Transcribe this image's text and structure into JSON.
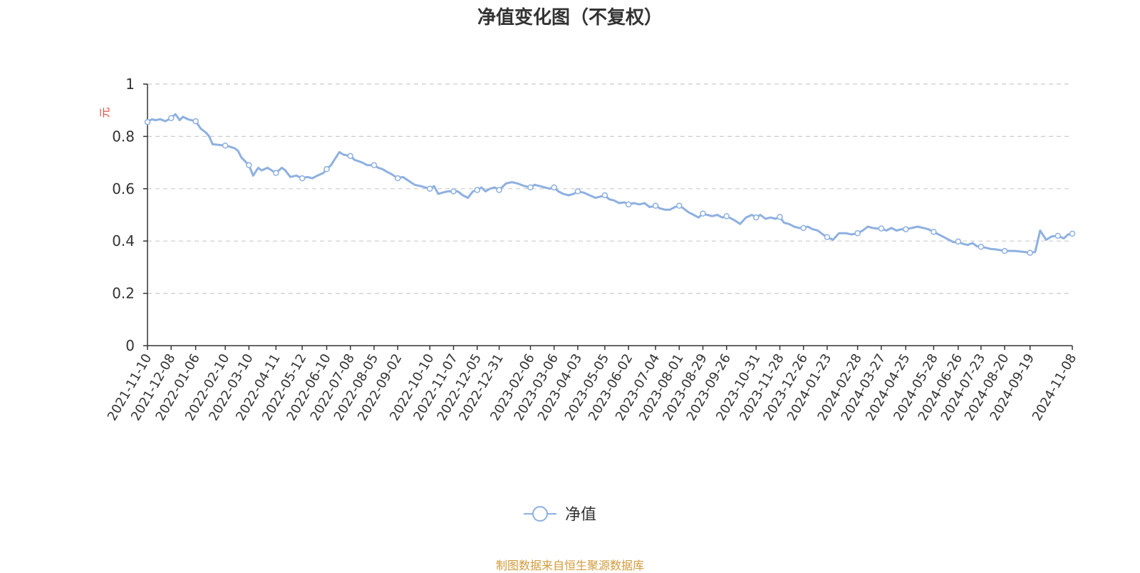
{
  "title": "净值变化图（不复权）",
  "source_note": "制图数据来自恒生聚源数据库",
  "chart_data": {
    "type": "line",
    "title": "净值变化图（不复权）",
    "ylabel": "元",
    "xlabel": "",
    "ylim": [
      0,
      1
    ],
    "yticks": [
      0,
      0.2,
      0.4,
      0.6,
      0.8,
      1
    ],
    "ytick_labels": [
      "0",
      "0.2",
      "0.4",
      "0.6",
      "0.8",
      "1"
    ],
    "grid": "horizontal dashed",
    "legend_position": "bottom-center",
    "x_tick_labels": [
      "2021-11-10",
      "2021-12-08",
      "2022-01-06",
      "2022-02-10",
      "2022-03-10",
      "2022-04-11",
      "2022-05-12",
      "2022-06-10",
      "2022-07-08",
      "2022-08-05",
      "2022-09-02",
      "2022-10-10",
      "2022-11-07",
      "2022-12-05",
      "2022-12-31",
      "2023-02-06",
      "2023-03-06",
      "2023-04-03",
      "2023-05-05",
      "2023-06-02",
      "2023-07-04",
      "2023-08-01",
      "2023-08-29",
      "2023-09-26",
      "2023-10-31",
      "2023-11-28",
      "2023-12-26",
      "2024-01-23",
      "2024-02-28",
      "2024-03-27",
      "2024-04-25",
      "2024-05-28",
      "2024-06-26",
      "2024-07-23",
      "2024-08-20",
      "2024-09-19",
      "2024-11-08"
    ],
    "series": [
      {
        "name": "净值",
        "color": "#8eb0e0",
        "marker": "hollow-circle",
        "x": [
          "2021-11-10",
          "2021-11-15",
          "2021-11-20",
          "2021-11-25",
          "2021-12-01",
          "2021-12-08",
          "2021-12-13",
          "2021-12-18",
          "2021-12-22",
          "2021-12-28",
          "2022-01-06",
          "2022-01-12",
          "2022-01-18",
          "2022-01-22",
          "2022-01-26",
          "2022-02-10",
          "2022-02-16",
          "2022-02-21",
          "2022-02-25",
          "2022-03-01",
          "2022-03-10",
          "2022-03-15",
          "2022-03-21",
          "2022-03-25",
          "2022-04-01",
          "2022-04-11",
          "2022-04-18",
          "2022-04-22",
          "2022-04-28",
          "2022-05-05",
          "2022-05-12",
          "2022-05-18",
          "2022-05-24",
          "2022-05-30",
          "2022-06-06",
          "2022-06-10",
          "2022-06-15",
          "2022-06-20",
          "2022-06-25",
          "2022-06-30",
          "2022-07-08",
          "2022-07-13",
          "2022-07-18",
          "2022-07-22",
          "2022-07-28",
          "2022-08-05",
          "2022-08-10",
          "2022-08-15",
          "2022-08-20",
          "2022-08-26",
          "2022-09-02",
          "2022-09-08",
          "2022-09-15",
          "2022-09-22",
          "2022-09-29",
          "2022-10-10",
          "2022-10-15",
          "2022-10-20",
          "2022-10-25",
          "2022-10-31",
          "2022-11-07",
          "2022-11-12",
          "2022-11-18",
          "2022-11-24",
          "2022-11-30",
          "2022-12-05",
          "2022-12-10",
          "2022-12-15",
          "2022-12-20",
          "2022-12-26",
          "2022-12-31",
          "2023-01-08",
          "2023-01-15",
          "2023-01-22",
          "2023-01-30",
          "2023-02-06",
          "2023-02-11",
          "2023-02-17",
          "2023-02-23",
          "2023-03-01",
          "2023-03-06",
          "2023-03-11",
          "2023-03-17",
          "2023-03-23",
          "2023-03-29",
          "2023-04-03",
          "2023-04-10",
          "2023-04-17",
          "2023-04-24",
          "2023-04-30",
          "2023-05-05",
          "2023-05-10",
          "2023-05-16",
          "2023-05-22",
          "2023-05-28",
          "2023-06-02",
          "2023-06-08",
          "2023-06-15",
          "2023-06-21",
          "2023-06-27",
          "2023-07-04",
          "2023-07-09",
          "2023-07-15",
          "2023-07-21",
          "2023-07-27",
          "2023-08-01",
          "2023-08-06",
          "2023-08-12",
          "2023-08-18",
          "2023-08-24",
          "2023-08-29",
          "2023-09-03",
          "2023-09-09",
          "2023-09-15",
          "2023-09-21",
          "2023-09-26",
          "2023-10-05",
          "2023-10-12",
          "2023-10-19",
          "2023-10-26",
          "2023-10-31",
          "2023-11-05",
          "2023-11-11",
          "2023-11-17",
          "2023-11-23",
          "2023-11-28",
          "2023-12-03",
          "2023-12-09",
          "2023-12-15",
          "2023-12-21",
          "2023-12-26",
          "2023-12-31",
          "2024-01-06",
          "2024-01-12",
          "2024-01-18",
          "2024-01-23",
          "2024-01-30",
          "2024-02-06",
          "2024-02-14",
          "2024-02-21",
          "2024-02-28",
          "2024-03-05",
          "2024-03-11",
          "2024-03-17",
          "2024-03-22",
          "2024-03-27",
          "2024-04-02",
          "2024-04-08",
          "2024-04-14",
          "2024-04-20",
          "2024-04-25",
          "2024-05-02",
          "2024-05-09",
          "2024-05-16",
          "2024-05-22",
          "2024-05-28",
          "2024-06-03",
          "2024-06-09",
          "2024-06-15",
          "2024-06-21",
          "2024-06-26",
          "2024-07-01",
          "2024-07-07",
          "2024-07-13",
          "2024-07-18",
          "2024-07-23",
          "2024-07-28",
          "2024-08-03",
          "2024-08-09",
          "2024-08-15",
          "2024-08-20",
          "2024-08-26",
          "2024-09-01",
          "2024-09-07",
          "2024-09-13",
          "2024-09-19",
          "2024-09-25",
          "2024-10-01",
          "2024-10-08",
          "2024-10-15",
          "2024-10-22",
          "2024-10-29",
          "2024-11-03",
          "2024-11-08"
        ],
        "y": [
          0.855,
          0.865,
          0.862,
          0.866,
          0.858,
          0.87,
          0.885,
          0.862,
          0.875,
          0.865,
          0.858,
          0.83,
          0.815,
          0.8,
          0.77,
          0.765,
          0.76,
          0.755,
          0.745,
          0.72,
          0.69,
          0.65,
          0.68,
          0.67,
          0.68,
          0.66,
          0.68,
          0.67,
          0.645,
          0.65,
          0.64,
          0.645,
          0.64,
          0.65,
          0.66,
          0.675,
          0.69,
          0.715,
          0.74,
          0.73,
          0.725,
          0.71,
          0.705,
          0.7,
          0.69,
          0.69,
          0.68,
          0.675,
          0.665,
          0.655,
          0.64,
          0.645,
          0.63,
          0.615,
          0.61,
          0.6,
          0.61,
          0.58,
          0.585,
          0.59,
          0.59,
          0.59,
          0.575,
          0.565,
          0.59,
          0.595,
          0.605,
          0.59,
          0.6,
          0.605,
          0.595,
          0.62,
          0.625,
          0.62,
          0.61,
          0.605,
          0.615,
          0.61,
          0.605,
          0.6,
          0.605,
          0.59,
          0.58,
          0.575,
          0.58,
          0.59,
          0.585,
          0.575,
          0.565,
          0.57,
          0.575,
          0.56,
          0.555,
          0.545,
          0.548,
          0.54,
          0.545,
          0.54,
          0.545,
          0.53,
          0.535,
          0.525,
          0.52,
          0.52,
          0.53,
          0.535,
          0.525,
          0.51,
          0.5,
          0.49,
          0.505,
          0.5,
          0.495,
          0.5,
          0.49,
          0.495,
          0.48,
          0.465,
          0.49,
          0.5,
          0.49,
          0.5,
          0.485,
          0.49,
          0.485,
          0.492,
          0.47,
          0.465,
          0.455,
          0.45,
          0.45,
          0.455,
          0.445,
          0.44,
          0.425,
          0.415,
          0.405,
          0.43,
          0.43,
          0.425,
          0.43,
          0.44,
          0.455,
          0.45,
          0.448,
          0.448,
          0.44,
          0.45,
          0.44,
          0.445,
          0.445,
          0.45,
          0.455,
          0.45,
          0.445,
          0.435,
          0.425,
          0.415,
          0.405,
          0.395,
          0.398,
          0.39,
          0.385,
          0.392,
          0.38,
          0.378,
          0.375,
          0.37,
          0.368,
          0.365,
          0.362,
          0.362,
          0.362,
          0.36,
          0.358,
          0.355,
          0.358,
          0.44,
          0.405,
          0.418,
          0.42,
          0.41,
          0.425,
          0.428
        ],
        "marker_points": [
          "2021-11-10",
          "2021-12-08",
          "2022-01-06",
          "2022-02-10",
          "2022-03-10",
          "2022-04-11",
          "2022-05-12",
          "2022-06-10",
          "2022-07-08",
          "2022-08-05",
          "2022-09-02",
          "2022-10-10",
          "2022-11-07",
          "2022-12-05",
          "2022-12-31",
          "2023-02-06",
          "2023-03-06",
          "2023-04-03",
          "2023-05-05",
          "2023-06-02",
          "2023-07-04",
          "2023-08-01",
          "2023-08-29",
          "2023-09-26",
          "2023-10-31",
          "2023-11-28",
          "2023-12-26",
          "2024-01-23",
          "2024-02-28",
          "2024-03-27",
          "2024-04-25",
          "2024-05-28",
          "2024-06-26",
          "2024-07-23",
          "2024-08-20",
          "2024-09-19",
          "2024-10-22",
          "2024-11-08"
        ]
      }
    ]
  }
}
